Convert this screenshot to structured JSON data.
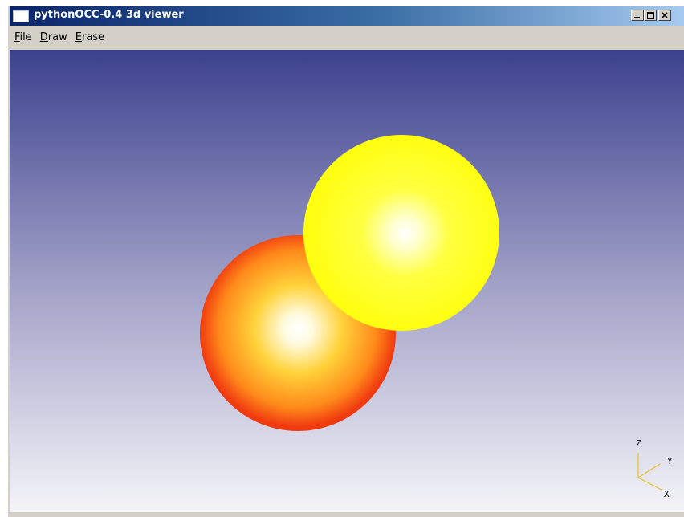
{
  "window": {
    "title": "pythonOCC-0.4 3d viewer"
  },
  "menu": [
    "File",
    "Draw",
    "Erase"
  ],
  "triad": {
    "z": "Z",
    "y": "Y",
    "x": "X"
  }
}
